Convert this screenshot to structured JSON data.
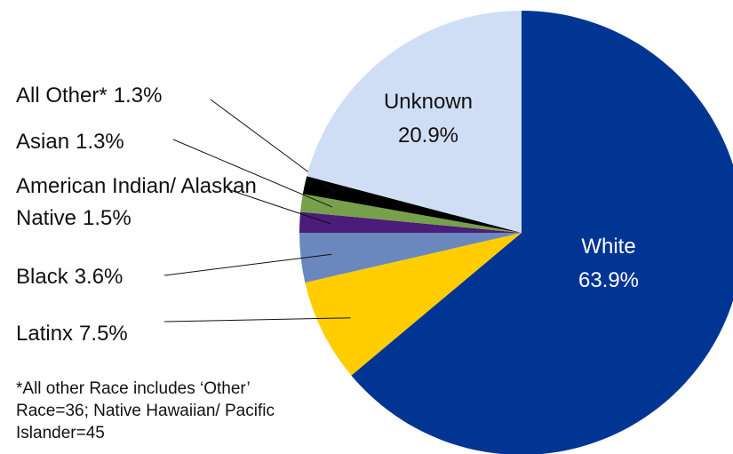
{
  "chart_data": {
    "type": "pie",
    "categories": [
      "White",
      "Latinx",
      "Black",
      "American Indian/ Alaskan Native",
      "Asian",
      "All Other*",
      "Unknown"
    ],
    "values": [
      63.9,
      7.5,
      3.6,
      1.5,
      1.3,
      1.3,
      20.9
    ],
    "value_labels": [
      "63.9%",
      "7.5%",
      "3.6%",
      "1.5%",
      "1.3%",
      "1.3%",
      "20.9%"
    ],
    "colors": [
      "#003594",
      "#ffcd00",
      "#6a88bd",
      "#4b1c7a",
      "#77a04a",
      "#000000",
      "#d0def5"
    ],
    "note": "*All other Race includes ‘Other’ Race=36; Native Hawaiian/ Pacific Islander=45"
  }
}
